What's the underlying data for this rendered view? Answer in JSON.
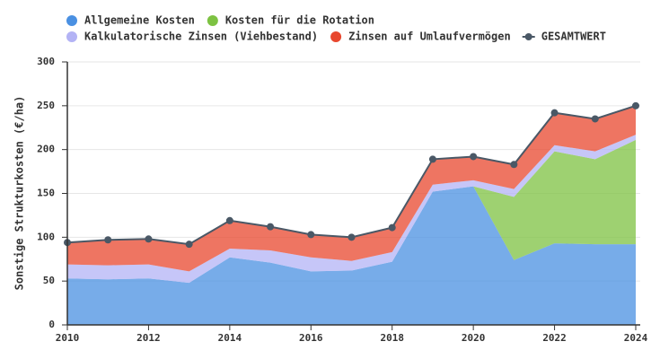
{
  "chart_data": {
    "type": "area",
    "stacked": true,
    "ylabel": "Sonstige Strukturkosten (€/ha)",
    "x": [
      2010,
      2011,
      2012,
      2013,
      2014,
      2015,
      2016,
      2017,
      2018,
      2019,
      2020,
      2021,
      2022,
      2023,
      2024
    ],
    "series": [
      {
        "name": "Allgemeine Kosten",
        "color": "#4a90e2",
        "values": [
          53,
          52,
          53,
          48,
          77,
          71,
          61,
          62,
          72,
          152,
          158,
          74,
          93,
          92,
          92
        ]
      },
      {
        "name": "Kosten für die Rotation",
        "color": "#7dc242",
        "values": [
          0,
          0,
          0,
          0,
          0,
          0,
          0,
          0,
          0,
          0,
          0,
          72,
          105,
          97,
          119
        ]
      },
      {
        "name": "Kalkulatorische Zinsen (Viehbestand)",
        "color": "#b3b3f5",
        "values": [
          16,
          16,
          16,
          13,
          10,
          14,
          16,
          11,
          11,
          8,
          7,
          9,
          7,
          9,
          6
        ]
      },
      {
        "name": "Zinsen auf Umlaufvermögen",
        "color": "#e8472e",
        "values": [
          25,
          29,
          29,
          31,
          32,
          27,
          26,
          27,
          28,
          29,
          27,
          28,
          37,
          37,
          33
        ]
      },
      {
        "name": "GESAMTWERT",
        "color": "#4a5866",
        "type": "line",
        "values": [
          94,
          97,
          98,
          92,
          119,
          112,
          103,
          100,
          111,
          189,
          192,
          183,
          242,
          235,
          250
        ]
      }
    ],
    "xlim": [
      2010,
      2024
    ],
    "xticks": [
      2010,
      2012,
      2014,
      2016,
      2018,
      2020,
      2022,
      2024
    ],
    "ylim": [
      0,
      300
    ],
    "yticks": [
      0,
      50,
      100,
      150,
      200,
      250,
      300
    ],
    "grid": true
  }
}
